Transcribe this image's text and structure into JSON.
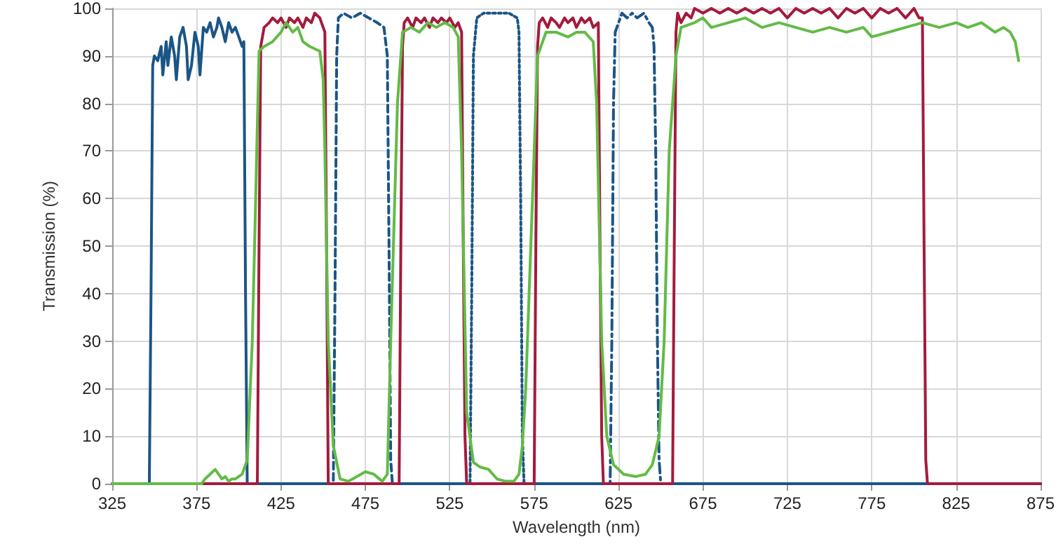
{
  "chart_data": {
    "type": "line",
    "xlabel": "Wavelength (nm)",
    "ylabel": "Transmission (%)",
    "xlim": [
      325,
      875
    ],
    "xticks": [
      325,
      375,
      425,
      475,
      525,
      575,
      625,
      675,
      725,
      775,
      825,
      875
    ],
    "ylim": [
      0,
      100
    ],
    "yticks": [
      0,
      10,
      20,
      30,
      40,
      50,
      60,
      70,
      80,
      90,
      100
    ],
    "grid": true,
    "marker": "none",
    "series": [
      {
        "color": "#1b5586",
        "line_style": "solid",
        "x": [
          325,
          347,
          348,
          349,
          350,
          352,
          354,
          355,
          357,
          358,
          360,
          362,
          363,
          365,
          367,
          369,
          370,
          372,
          374,
          376,
          377,
          379,
          381,
          383,
          385,
          387,
          388,
          390,
          392,
          394,
          396,
          398,
          400,
          402,
          403,
          404,
          405,
          875
        ],
        "values": [
          0,
          0,
          40,
          88,
          90,
          89,
          92,
          86,
          93,
          88,
          94,
          90,
          85,
          94,
          96,
          92,
          85,
          88,
          95,
          92,
          86,
          96,
          95,
          97,
          94,
          96,
          98,
          96,
          93,
          97,
          95,
          96,
          94,
          92,
          93,
          40,
          0,
          0
        ]
      },
      {
        "color": "#1b5586",
        "line_style": "dashed",
        "x": [
          325,
          456,
          457,
          458,
          459,
          462,
          467,
          472,
          477,
          482,
          486,
          488,
          489,
          490,
          491,
          875
        ],
        "values": [
          0,
          0,
          40,
          90,
          98,
          99,
          98,
          99,
          98,
          97,
          96,
          90,
          50,
          5,
          0,
          0
        ]
      },
      {
        "color": "#1b5586",
        "line_style": "dotted",
        "x": [
          325,
          537,
          538,
          539,
          541,
          545,
          550,
          555,
          560,
          565,
          566,
          567,
          568,
          569,
          875
        ],
        "values": [
          0,
          0,
          40,
          90,
          98,
          99,
          99,
          99,
          99,
          98,
          95,
          60,
          10,
          0,
          0
        ]
      },
      {
        "color": "#1b5586",
        "line_style": "dashdot",
        "x": [
          325,
          620,
          621,
          622,
          623,
          625,
          627,
          630,
          633,
          636,
          640,
          643,
          645,
          646,
          647,
          648,
          649,
          650,
          875
        ],
        "values": [
          0,
          0,
          30,
          80,
          95,
          97,
          99,
          98,
          99,
          98,
          99,
          97,
          96,
          92,
          70,
          30,
          5,
          0,
          0
        ]
      },
      {
        "color": "#a31b3c",
        "line_style": "solid",
        "x": [
          325,
          411,
          412,
          413,
          415,
          418,
          420,
          423,
          425,
          428,
          430,
          433,
          435,
          438,
          440,
          443,
          445,
          448,
          450,
          451,
          452,
          453,
          495,
          496,
          497,
          498,
          500,
          503,
          505,
          508,
          510,
          513,
          515,
          518,
          520,
          523,
          525,
          528,
          530,
          532,
          533,
          534,
          535,
          575,
          576,
          577,
          578,
          580,
          583,
          585,
          588,
          590,
          593,
          595,
          598,
          600,
          603,
          605,
          608,
          610,
          613,
          614,
          615,
          616,
          657,
          658,
          659,
          660,
          662,
          665,
          668,
          670,
          675,
          680,
          685,
          690,
          695,
          700,
          705,
          710,
          715,
          720,
          725,
          730,
          735,
          740,
          745,
          750,
          755,
          760,
          765,
          770,
          775,
          780,
          785,
          790,
          795,
          800,
          803,
          805,
          806,
          807,
          808,
          875
        ],
        "values": [
          0,
          0,
          50,
          92,
          96,
          97,
          98,
          97,
          98,
          96,
          98,
          97,
          98,
          96,
          98,
          97,
          99,
          98,
          96,
          95,
          50,
          0,
          0,
          50,
          92,
          97,
          98,
          96,
          98,
          97,
          98,
          96,
          98,
          97,
          98,
          97,
          98,
          96,
          97,
          95,
          50,
          10,
          0,
          0,
          50,
          92,
          97,
          98,
          96,
          98,
          97,
          96,
          98,
          97,
          98,
          96,
          98,
          97,
          98,
          96,
          97,
          50,
          10,
          0,
          0,
          50,
          95,
          99,
          97,
          99,
          98,
          100,
          99,
          100,
          99,
          100,
          99,
          100,
          99,
          100,
          99,
          100,
          98,
          100,
          99,
          100,
          99,
          100,
          98,
          100,
          99,
          100,
          98,
          100,
          99,
          100,
          98,
          100,
          98,
          98,
          50,
          5,
          0,
          0
        ]
      },
      {
        "color": "#62bb46",
        "line_style": "solid",
        "x": [
          325,
          378,
          380,
          383,
          386,
          388,
          390,
          392,
          394,
          396,
          398,
          402,
          405,
          408,
          410,
          412,
          415,
          420,
          425,
          428,
          432,
          435,
          438,
          442,
          448,
          450,
          451,
          453,
          456,
          460,
          465,
          470,
          475,
          480,
          485,
          488,
          490,
          494,
          497,
          502,
          507,
          512,
          517,
          522,
          527,
          530,
          532,
          535,
          539,
          543,
          548,
          553,
          558,
          563,
          566,
          568,
          570,
          574,
          577,
          582,
          588,
          595,
          600,
          605,
          610,
          612,
          615,
          618,
          622,
          628,
          635,
          641,
          645,
          649,
          652,
          655,
          659,
          662,
          670,
          675,
          680,
          690,
          700,
          710,
          720,
          730,
          740,
          750,
          760,
          770,
          775,
          785,
          795,
          805,
          815,
          825,
          832,
          840,
          848,
          853,
          857,
          860,
          862
        ],
        "values": [
          0,
          0,
          1,
          2,
          3,
          2,
          1,
          1.5,
          0.5,
          1,
          1,
          2,
          5,
          30,
          60,
          91,
          92,
          93,
          95,
          97,
          95,
          96,
          93,
          92,
          91,
          85,
          70,
          30,
          8,
          1,
          0.5,
          1.5,
          2.5,
          2,
          0.5,
          2,
          30,
          80,
          95,
          96,
          95,
          97,
          96,
          97,
          96,
          94,
          70,
          15,
          4.5,
          3.5,
          3,
          1,
          0.5,
          0.5,
          2,
          8,
          20,
          60,
          90,
          95,
          95,
          94,
          95,
          95,
          93,
          80,
          30,
          10,
          4,
          2,
          1.5,
          2,
          4,
          10,
          30,
          70,
          90,
          96,
          97,
          98,
          96,
          97,
          98,
          96,
          97,
          96,
          95,
          96,
          95,
          96,
          94,
          95,
          96,
          97,
          96,
          97,
          96,
          97,
          95,
          96,
          95,
          93,
          89
        ]
      }
    ]
  }
}
